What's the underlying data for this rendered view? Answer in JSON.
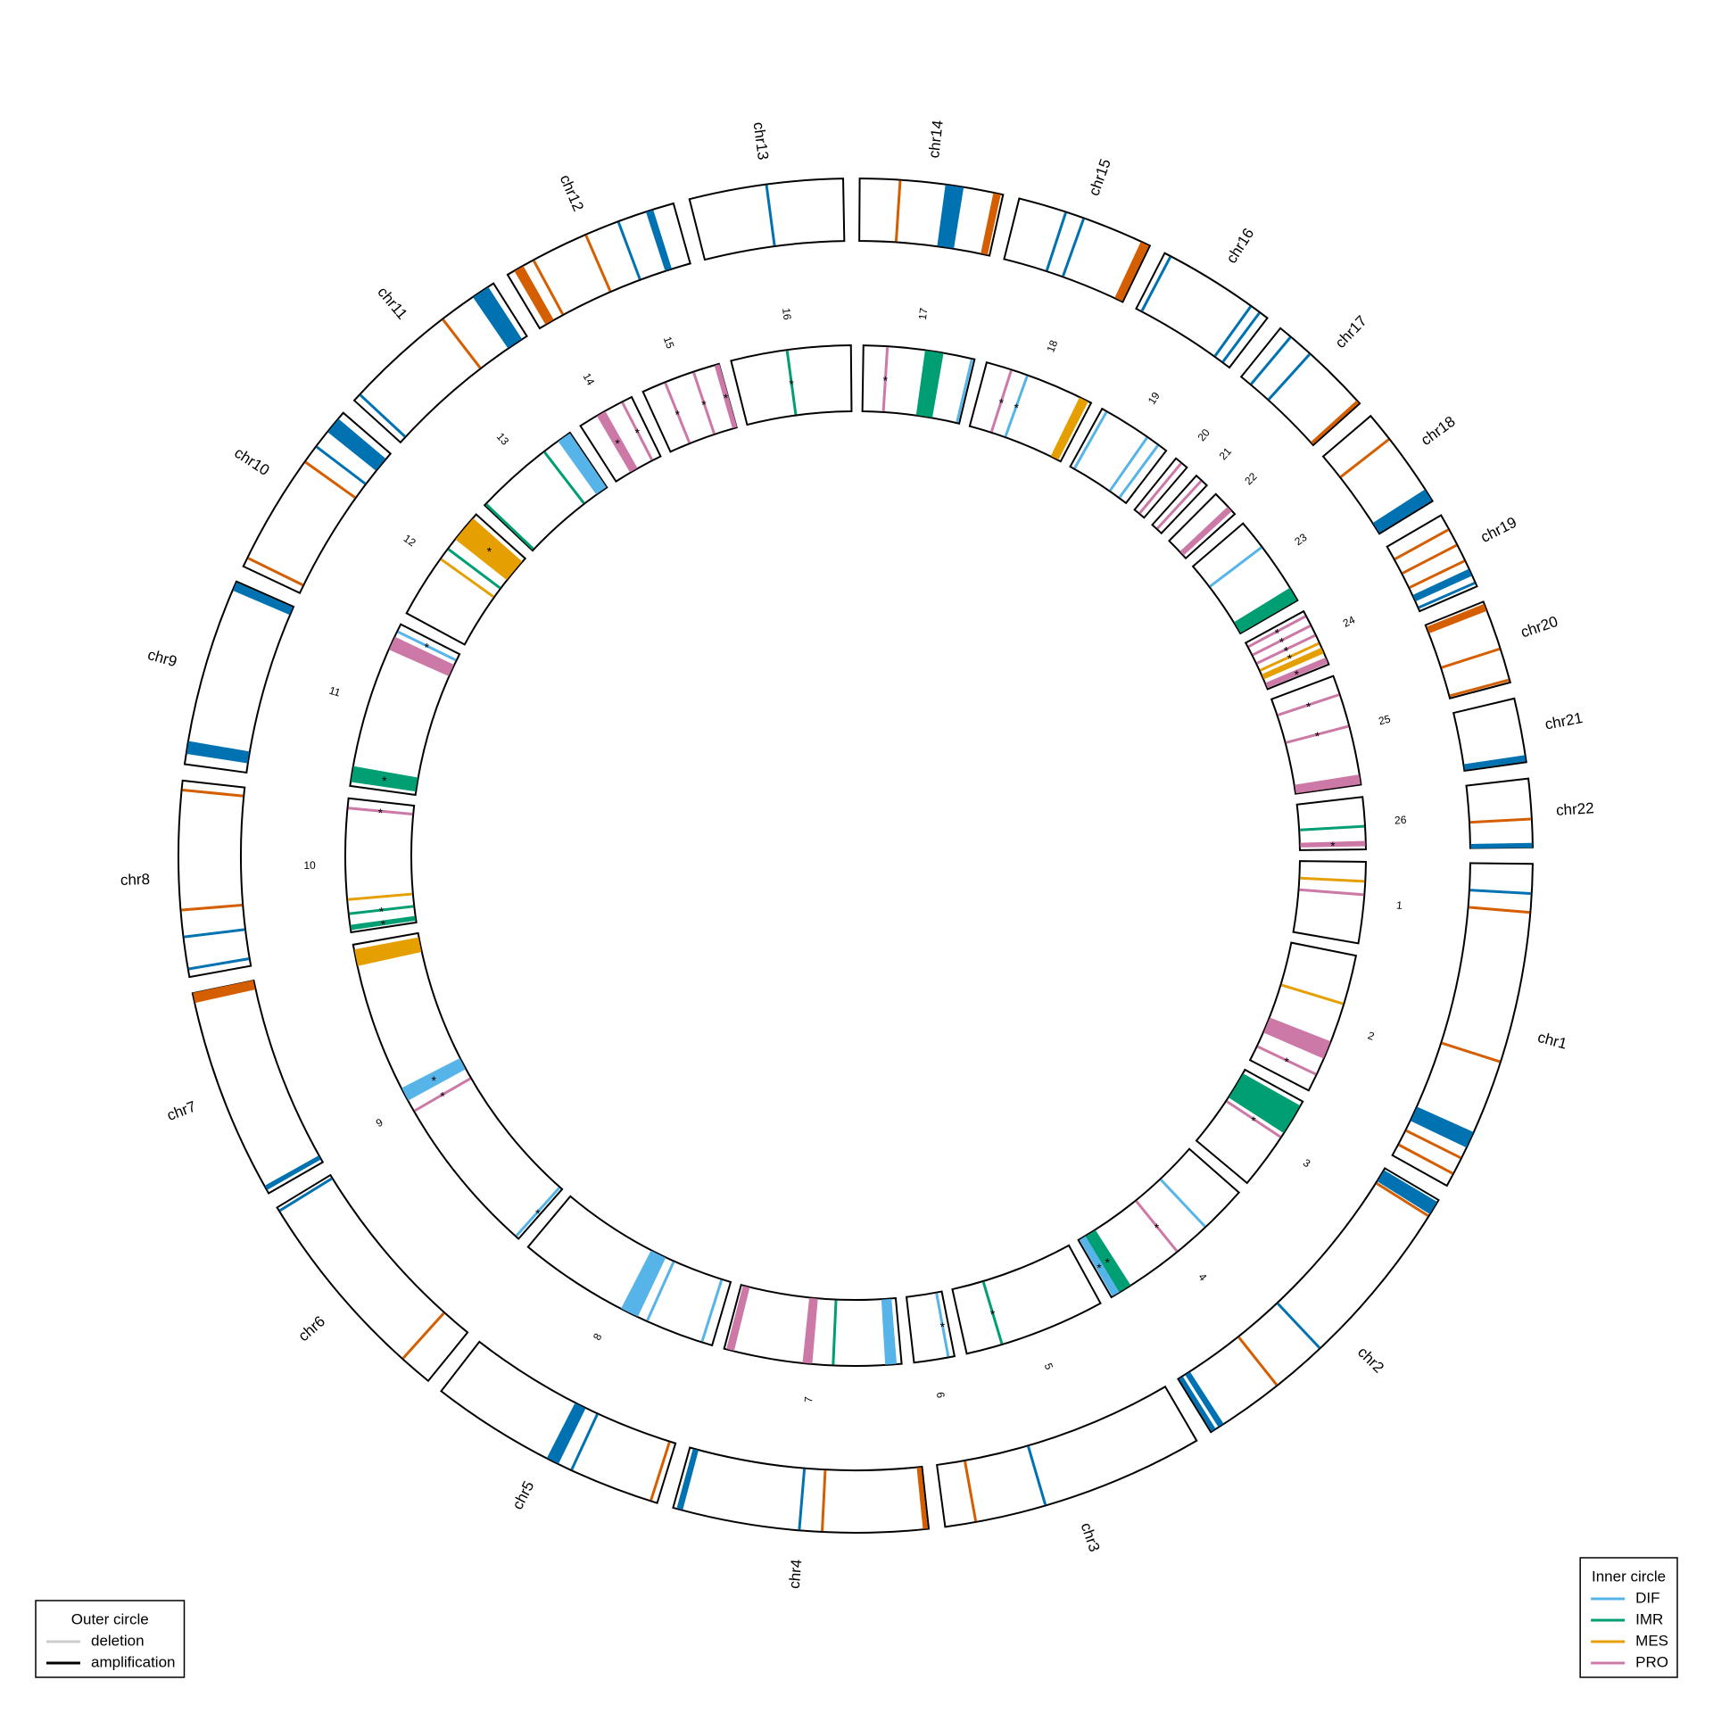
{
  "chart_data": {
    "type": "circos",
    "outer": {
      "segments": [
        {
          "name": "chr1",
          "length": 249
        },
        {
          "name": "chr2",
          "length": 243
        },
        {
          "name": "chr3",
          "length": 198
        },
        {
          "name": "chr4",
          "length": 191
        },
        {
          "name": "chr5",
          "length": 181
        },
        {
          "name": "chr6",
          "length": 171
        },
        {
          "name": "chr7",
          "length": 159
        },
        {
          "name": "chr8",
          "length": 146
        },
        {
          "name": "chr9",
          "length": 141
        },
        {
          "name": "chr10",
          "length": 136
        },
        {
          "name": "chr11",
          "length": 135
        },
        {
          "name": "chr12",
          "length": 134
        },
        {
          "name": "chr13",
          "length": 115
        },
        {
          "name": "chr14",
          "length": 107
        },
        {
          "name": "chr15",
          "length": 103
        },
        {
          "name": "chr16",
          "length": 90
        },
        {
          "name": "chr17",
          "length": 81
        },
        {
          "name": "chr18",
          "length": 78
        },
        {
          "name": "chr19",
          "length": 59
        },
        {
          "name": "chr20",
          "length": 63
        },
        {
          "name": "chr21",
          "length": 48
        },
        {
          "name": "chr22",
          "length": 51
        }
      ],
      "marks": [
        {
          "segment": "chr1",
          "start": 22,
          "color": "#0072b2"
        },
        {
          "segment": "chr1",
          "start": 36,
          "color": "#d55e00"
        },
        {
          "segment": "chr1",
          "start": 149,
          "color": "#d55e00"
        },
        {
          "segment": "chr1",
          "start": 205,
          "end": 217,
          "color": "#0072b2"
        },
        {
          "segment": "chr1",
          "start": 226,
          "color": "#d55e00"
        },
        {
          "segment": "chr1",
          "start": 239,
          "color": "#d55e00"
        },
        {
          "segment": "chr2",
          "start": 2,
          "end": 12,
          "color": "#0072b2"
        },
        {
          "segment": "chr2",
          "start": 14,
          "color": "#d55e00"
        },
        {
          "segment": "chr2",
          "start": 141,
          "color": "#0072b2"
        },
        {
          "segment": "chr2",
          "start": 183,
          "color": "#d55e00"
        },
        {
          "segment": "chr2",
          "start": 232,
          "end": 236,
          "color": "#0072b2"
        },
        {
          "segment": "chr2",
          "start": 239,
          "end": 242,
          "color": "#0072b2"
        },
        {
          "segment": "chr3",
          "start": 122,
          "color": "#0072b2"
        },
        {
          "segment": "chr3",
          "start": 175,
          "color": "#d55e00"
        },
        {
          "segment": "chr4",
          "start": 1,
          "end": 4,
          "color": "#d55e00"
        },
        {
          "segment": "chr4",
          "start": 79,
          "color": "#d55e00"
        },
        {
          "segment": "chr4",
          "start": 96,
          "color": "#0072b2"
        },
        {
          "segment": "chr4",
          "start": 184,
          "end": 188,
          "color": "#0072b2"
        },
        {
          "segment": "chr5",
          "start": 5,
          "color": "#d55e00"
        },
        {
          "segment": "chr5",
          "start": 68,
          "color": "#0072b2"
        },
        {
          "segment": "chr5",
          "start": 79,
          "end": 88,
          "color": "#0072b2"
        },
        {
          "segment": "chr6",
          "start": 25,
          "color": "#d55e00"
        },
        {
          "segment": "chr6",
          "start": 168,
          "color": "#0072b2"
        },
        {
          "segment": "chr7",
          "start": 3,
          "end": 6,
          "color": "#0072b2"
        },
        {
          "segment": "chr7",
          "start": 152,
          "end": 159,
          "color": "#d55e00"
        },
        {
          "segment": "chr8",
          "start": 6,
          "color": "#0072b2"
        },
        {
          "segment": "chr8",
          "start": 30,
          "color": "#0072b2"
        },
        {
          "segment": "chr8",
          "start": 50,
          "color": "#d55e00"
        },
        {
          "segment": "chr8",
          "start": 139,
          "color": "#d55e00"
        },
        {
          "segment": "chr9",
          "start": 8,
          "end": 17,
          "color": "#0072b2"
        },
        {
          "segment": "chr9",
          "start": 134,
          "end": 140,
          "color": "#0072b2"
        },
        {
          "segment": "chr10",
          "start": 7,
          "color": "#d55e00"
        },
        {
          "segment": "chr10",
          "start": 90,
          "color": "#d55e00"
        },
        {
          "segment": "chr10",
          "start": 104,
          "color": "#0072b2"
        },
        {
          "segment": "chr10",
          "start": 118,
          "end": 130,
          "color": "#0072b2"
        },
        {
          "segment": "chr11",
          "start": 6,
          "color": "#0072b2"
        },
        {
          "segment": "chr11",
          "start": 89,
          "color": "#d55e00"
        },
        {
          "segment": "chr11",
          "start": 117,
          "end": 130,
          "color": "#0072b2"
        },
        {
          "segment": "chr12",
          "start": 6,
          "end": 13,
          "color": "#d55e00"
        },
        {
          "segment": "chr12",
          "start": 22,
          "color": "#d55e00"
        },
        {
          "segment": "chr12",
          "start": 65,
          "color": "#d55e00"
        },
        {
          "segment": "chr12",
          "start": 91,
          "color": "#0072b2"
        },
        {
          "segment": "chr12",
          "start": 113,
          "end": 118,
          "color": "#0072b2"
        },
        {
          "segment": "chr13",
          "start": 58,
          "color": "#0072b2"
        },
        {
          "segment": "chr14",
          "start": 30,
          "color": "#d55e00"
        },
        {
          "segment": "chr14",
          "start": 64,
          "end": 77,
          "color": "#0072b2"
        },
        {
          "segment": "chr14",
          "start": 100,
          "end": 105,
          "color": "#d55e00"
        },
        {
          "segment": "chr15",
          "start": 36,
          "color": "#0072b2"
        },
        {
          "segment": "chr15",
          "start": 50,
          "color": "#0072b2"
        },
        {
          "segment": "chr15",
          "start": 96,
          "end": 102,
          "color": "#d55e00"
        },
        {
          "segment": "chr16",
          "start": 5,
          "color": "#0072b2"
        },
        {
          "segment": "chr16",
          "start": 75,
          "color": "#0072b2"
        },
        {
          "segment": "chr16",
          "start": 83,
          "color": "#0072b2"
        },
        {
          "segment": "chr17",
          "start": 10,
          "color": "#0072b2"
        },
        {
          "segment": "chr17",
          "start": 29,
          "color": "#0072b2"
        },
        {
          "segment": "chr17",
          "start": 78,
          "end": 80,
          "color": "#d55e00"
        },
        {
          "segment": "chr18",
          "start": 22,
          "color": "#d55e00"
        },
        {
          "segment": "chr18",
          "start": 68,
          "end": 77,
          "color": "#0072b2"
        },
        {
          "segment": "chr19",
          "start": 12,
          "color": "#d55e00"
        },
        {
          "segment": "chr19",
          "start": 25,
          "color": "#d55e00"
        },
        {
          "segment": "chr19",
          "start": 38,
          "color": "#d55e00"
        },
        {
          "segment": "chr19",
          "start": 45,
          "end": 50,
          "color": "#0072b2"
        },
        {
          "segment": "chr19",
          "start": 56,
          "color": "#0072b2"
        },
        {
          "segment": "chr20",
          "start": 2,
          "end": 7,
          "color": "#d55e00"
        },
        {
          "segment": "chr20",
          "start": 37,
          "color": "#d55e00"
        },
        {
          "segment": "chr20",
          "start": 61,
          "color": "#d55e00"
        },
        {
          "segment": "chr21",
          "start": 43,
          "end": 47,
          "color": "#0072b2"
        },
        {
          "segment": "chr22",
          "start": 30,
          "color": "#d55e00"
        },
        {
          "segment": "chr22",
          "start": 48,
          "end": 51,
          "color": "#0072b2"
        }
      ]
    },
    "inner": {
      "segments": [
        {
          "name": "1",
          "length": 92
        },
        {
          "name": "2",
          "length": 161
        },
        {
          "name": "3",
          "length": 111
        },
        {
          "name": "4",
          "length": 186
        },
        {
          "name": "5",
          "length": 161
        },
        {
          "name": "6",
          "length": 46
        },
        {
          "name": "7",
          "length": 201
        },
        {
          "name": "8",
          "length": 236
        },
        {
          "name": "9",
          "length": 386
        },
        {
          "name": "10",
          "length": 151
        },
        {
          "name": "11",
          "length": 191
        },
        {
          "name": "12",
          "length": 136
        },
        {
          "name": "13",
          "length": 126
        },
        {
          "name": "14",
          "length": 66
        },
        {
          "name": "15",
          "length": 91
        },
        {
          "name": "16",
          "length": 136
        },
        {
          "name": "17",
          "length": 126
        },
        {
          "name": "18",
          "length": 126
        },
        {
          "name": "19",
          "length": 86
        },
        {
          "name": "20",
          "length": 16
        },
        {
          "name": "21",
          "length": 16
        },
        {
          "name": "22",
          "length": 31
        },
        {
          "name": "23",
          "length": 106
        },
        {
          "name": "24",
          "length": 66
        },
        {
          "name": "25",
          "length": 126
        },
        {
          "name": "26",
          "length": 59
        }
      ],
      "marks": [
        {
          "segment": "1",
          "start": 22,
          "series": "MES"
        },
        {
          "segment": "1",
          "start": 37,
          "series": "PRO"
        },
        {
          "segment": "2",
          "start": 56,
          "series": "MES"
        },
        {
          "segment": "2",
          "start": 101,
          "end": 121,
          "series": "PRO"
        },
        {
          "segment": "2",
          "start": 141,
          "series": "PRO",
          "label": "*"
        },
        {
          "segment": "3",
          "start": 6,
          "end": 41,
          "series": "IMR"
        },
        {
          "segment": "3",
          "start": 47,
          "series": "PRO",
          "label": "*"
        },
        {
          "segment": "4",
          "start": 54,
          "series": "DIF"
        },
        {
          "segment": "4",
          "start": 96,
          "series": "PRO",
          "label": "*"
        },
        {
          "segment": "4",
          "start": 161,
          "end": 176,
          "series": "IMR",
          "label": "*"
        },
        {
          "segment": "4",
          "start": 176,
          "end": 184,
          "series": "DIF",
          "label": "*"
        },
        {
          "segment": "5",
          "start": 120,
          "series": "IMR",
          "label": "*"
        },
        {
          "segment": "6",
          "start": 7,
          "series": "DIF",
          "label": "*"
        },
        {
          "segment": "7",
          "start": 6,
          "end": 18,
          "series": "DIF"
        },
        {
          "segment": "7",
          "start": 77,
          "series": "IMR"
        },
        {
          "segment": "7",
          "start": 101,
          "end": 111,
          "series": "PRO"
        },
        {
          "segment": "7",
          "start": 190,
          "end": 198,
          "series": "PRO"
        },
        {
          "segment": "8",
          "start": 12,
          "series": "DIF"
        },
        {
          "segment": "8",
          "start": 78,
          "series": "DIF"
        },
        {
          "segment": "8",
          "start": 90,
          "end": 110,
          "series": "DIF"
        },
        {
          "segment": "9",
          "start": 4,
          "series": "DIF",
          "label": "*"
        },
        {
          "segment": "9",
          "start": 186,
          "series": "PRO",
          "label": "*"
        },
        {
          "segment": "9",
          "start": 200,
          "end": 215,
          "series": "DIF",
          "label": "*"
        },
        {
          "segment": "9",
          "start": 362,
          "end": 380,
          "series": "MES"
        },
        {
          "segment": "10",
          "start": 3,
          "end": 8,
          "series": "IMR",
          "label": "*"
        },
        {
          "segment": "10",
          "start": 21,
          "series": "IMR",
          "label": "*"
        },
        {
          "segment": "10",
          "start": 37,
          "series": "MES"
        },
        {
          "segment": "10",
          "start": 140,
          "series": "PRO",
          "label": "*"
        },
        {
          "segment": "11",
          "start": 5,
          "end": 22,
          "series": "IMR",
          "label": "*"
        },
        {
          "segment": "11",
          "start": 160,
          "end": 175,
          "series": "PRO"
        },
        {
          "segment": "11",
          "start": 182,
          "series": "DIF",
          "label": "*"
        },
        {
          "segment": "12",
          "start": 72,
          "series": "MES"
        },
        {
          "segment": "12",
          "start": 86,
          "series": "IMR"
        },
        {
          "segment": "12",
          "start": 100,
          "end": 130,
          "series": "MES",
          "label": "*"
        },
        {
          "segment": "13",
          "start": 2,
          "series": "IMR"
        },
        {
          "segment": "13",
          "start": 90,
          "series": "IMR"
        },
        {
          "segment": "13",
          "start": 110,
          "end": 125,
          "series": "DIF"
        },
        {
          "segment": "14",
          "start": 22,
          "end": 32,
          "series": "PRO",
          "label": "*"
        },
        {
          "segment": "14",
          "start": 54,
          "series": "PRO",
          "label": "*"
        },
        {
          "segment": "15",
          "start": 27,
          "series": "PRO",
          "label": "*"
        },
        {
          "segment": "15",
          "start": 61,
          "series": "PRO",
          "label": "*"
        },
        {
          "segment": "15",
          "start": 86,
          "end": 91,
          "series": "PRO",
          "label": "*"
        },
        {
          "segment": "16",
          "start": 64,
          "series": "IMR",
          "label": "*"
        },
        {
          "segment": "17",
          "start": 27,
          "series": "PRO",
          "label": "*"
        },
        {
          "segment": "17",
          "start": 70,
          "end": 90,
          "series": "IMR"
        },
        {
          "segment": "17",
          "start": 123,
          "series": "DIF"
        },
        {
          "segment": "18",
          "start": 29,
          "series": "PRO",
          "label": "*"
        },
        {
          "segment": "18",
          "start": 48,
          "series": "DIF",
          "label": "*"
        },
        {
          "segment": "18",
          "start": 112,
          "end": 122,
          "series": "MES"
        },
        {
          "segment": "19",
          "start": 6,
          "series": "DIF"
        },
        {
          "segment": "19",
          "start": 60,
          "series": "DIF"
        },
        {
          "segment": "19",
          "start": 75,
          "series": "DIF"
        },
        {
          "segment": "20",
          "start": 8,
          "series": "PRO"
        },
        {
          "segment": "21",
          "start": 8,
          "series": "PRO"
        },
        {
          "segment": "22",
          "start": 20,
          "end": 26,
          "series": "PRO"
        },
        {
          "segment": "23",
          "start": 34,
          "series": "DIF"
        },
        {
          "segment": "23",
          "start": 90,
          "end": 105,
          "series": "IMR"
        },
        {
          "segment": "24",
          "start": 6,
          "series": "PRO",
          "label": "*"
        },
        {
          "segment": "24",
          "start": 18,
          "series": "PRO",
          "label": "*"
        },
        {
          "segment": "24",
          "start": 30,
          "series": "PRO",
          "label": "*"
        },
        {
          "segment": "24",
          "start": 40,
          "series": "MES",
          "label": "*"
        },
        {
          "segment": "24",
          "start": 46,
          "end": 52,
          "series": "MES"
        },
        {
          "segment": "24",
          "start": 58,
          "end": 64,
          "series": "PRO",
          "label": "*"
        },
        {
          "segment": "25",
          "start": 22,
          "series": "PRO",
          "label": "*"
        },
        {
          "segment": "25",
          "start": 59,
          "series": "PRO",
          "label": "*"
        },
        {
          "segment": "25",
          "start": 115,
          "end": 125,
          "series": "PRO"
        },
        {
          "segment": "26",
          "start": 33,
          "series": "IMR"
        },
        {
          "segment": "26",
          "start": 50,
          "end": 55,
          "series": "PRO",
          "label": "*"
        }
      ]
    },
    "legends": [
      {
        "title": "Outer circle",
        "position": "bottom-left",
        "entries": [
          {
            "name": "deletion",
            "color": "#cccccc"
          },
          {
            "name": "amplification",
            "color": "#000000"
          }
        ]
      },
      {
        "title": "Inner circle",
        "position": "bottom-right",
        "entries": [
          {
            "name": "DIF",
            "color": "#56b4e9"
          },
          {
            "name": "IMR",
            "color": "#009e73"
          },
          {
            "name": "MES",
            "color": "#e69f00"
          },
          {
            "name": "PRO",
            "color": "#cc79a7"
          }
        ]
      }
    ]
  }
}
